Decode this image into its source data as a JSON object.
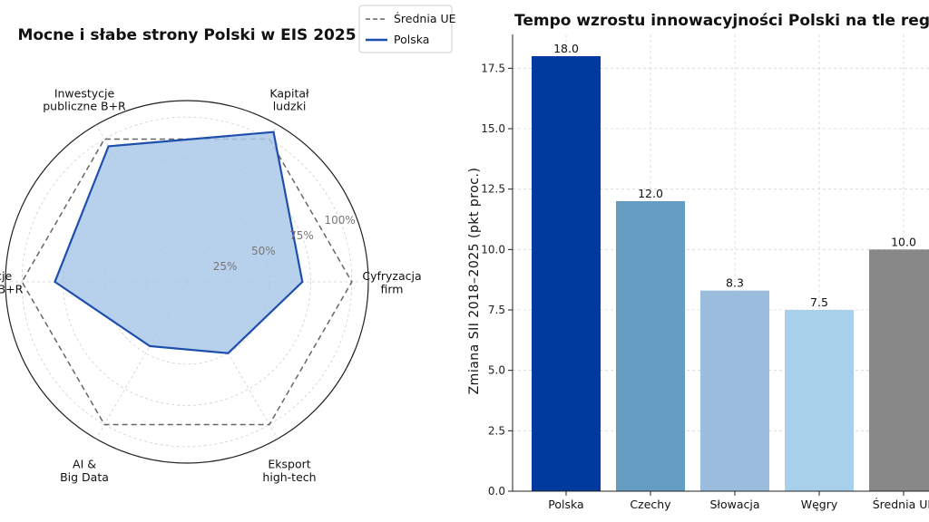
{
  "chart_data": [
    {
      "type": "radar",
      "title": "Mocne i słabe strony Polski w EIS 2025",
      "axes": [
        [
          "Kapitał",
          "ludzki"
        ],
        [
          "Cyfryzacja",
          "firm"
        ],
        [
          "Eksport",
          "high-tech"
        ],
        [
          "AI &",
          "Big Data"
        ],
        [
          "Inwestycje",
          "prywatne B+R"
        ],
        [
          "Inwestycje",
          "publiczne B+R"
        ]
      ],
      "radial_ticks": [
        "25%",
        "50%",
        "75%",
        "100%"
      ],
      "rlim": [
        0,
        110
      ],
      "series": [
        {
          "name": "Średnia UE",
          "values": [
            100,
            100,
            100,
            100,
            100,
            100
          ],
          "color": "#666666",
          "style": "dashed"
        },
        {
          "name": "Polska",
          "values": [
            105,
            70,
            50,
            45,
            80,
            95
          ],
          "color": "#1f4fad",
          "fill": "#aac8e8",
          "style": "solid"
        }
      ],
      "legend": "top-right"
    },
    {
      "type": "bar",
      "title": "Tempo wzrostu innowacyjności Polski na tle regionu",
      "ylabel": "Zmiana SII 2018–2025 (pkt proc.)",
      "categories": [
        "Polska",
        "Czechy",
        "Słowacja",
        "Węgry",
        "Średnia UE"
      ],
      "values": [
        18.0,
        12.0,
        8.3,
        7.5,
        10.0
      ],
      "value_labels": [
        "18.0",
        "12.0",
        "8.3",
        "7.5",
        "10.0"
      ],
      "colors": [
        "#003a9e",
        "#659cc2",
        "#9bbcdc",
        "#a8d0ea",
        "#888888"
      ],
      "yticks": [
        "0.0",
        "2.5",
        "5.0",
        "7.5",
        "10.0",
        "12.5",
        "15.0",
        "17.5"
      ],
      "ylim": [
        0,
        18.9
      ],
      "grid": true
    }
  ]
}
